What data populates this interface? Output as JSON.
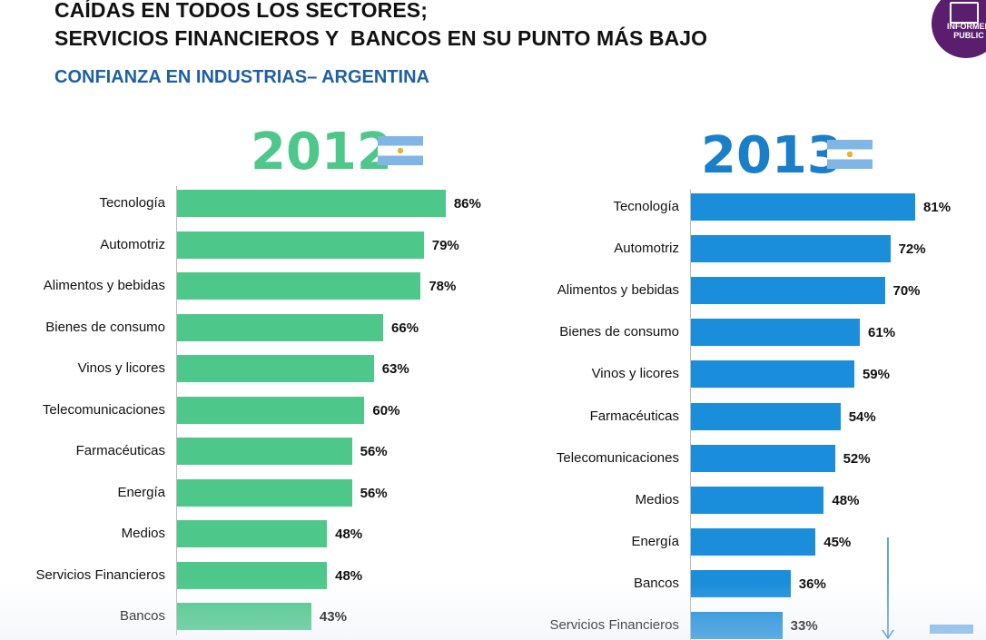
{
  "header": {
    "title_line1": "CAÍDAS EN TODOS LOS SECTORES;",
    "title_line2": "SERVICIOS FINANCIEROS Y  BANCOS EN SU PUNTO MÁS BAJO",
    "subtitle": "CONFIANZA EN INDUSTRIAS– ARGENTINA"
  },
  "logo": {
    "line1": "INFORMED",
    "line2": "PUBLIC"
  },
  "colors": {
    "bar_2012": "#4ec88a",
    "bar_2013": "#1a8ddb",
    "year_2012": "#4ec88a",
    "year_2013": "#1a7fc8",
    "arrow": "#2a86d0"
  },
  "icons": {
    "flag": "argentina-flag-icon",
    "logo": "edelman-logo-icon",
    "arrow": "down-arrow-icon"
  },
  "chart_data": [
    {
      "type": "bar",
      "orientation": "horizontal",
      "title": "2012",
      "categories": [
        "Tecnología",
        "Automotriz",
        "Alimentos y bebidas",
        "Bienes de consumo",
        "Vinos y licores",
        "Telecomunicaciones",
        "Farmacéuticas",
        "Energía",
        "Medios",
        "Servicios Financieros",
        "Bancos"
      ],
      "values": [
        86,
        79,
        78,
        66,
        63,
        60,
        56,
        56,
        48,
        48,
        43
      ],
      "value_labels": [
        "86%",
        "79%",
        "78%",
        "66%",
        "63%",
        "60%",
        "56%",
        "56%",
        "48%",
        "48%",
        "43%"
      ],
      "unit": "%",
      "xlim": [
        0,
        100
      ]
    },
    {
      "type": "bar",
      "orientation": "horizontal",
      "title": "2013",
      "categories": [
        "Tecnología",
        "Automotriz",
        "Alimentos y bebidas",
        "Bienes de consumo",
        "Vinos y licores",
        "Farmacéuticas",
        "Telecomunicaciones",
        "Medios",
        "Energía",
        "Bancos",
        "Servicios Financieros"
      ],
      "values": [
        81,
        72,
        70,
        61,
        59,
        54,
        52,
        48,
        45,
        36,
        33
      ],
      "value_labels": [
        "81%",
        "72%",
        "70%",
        "61%",
        "59%",
        "54%",
        "52%",
        "48%",
        "45%",
        "36%",
        "33%"
      ],
      "unit": "%",
      "xlim": [
        0,
        100
      ]
    }
  ]
}
